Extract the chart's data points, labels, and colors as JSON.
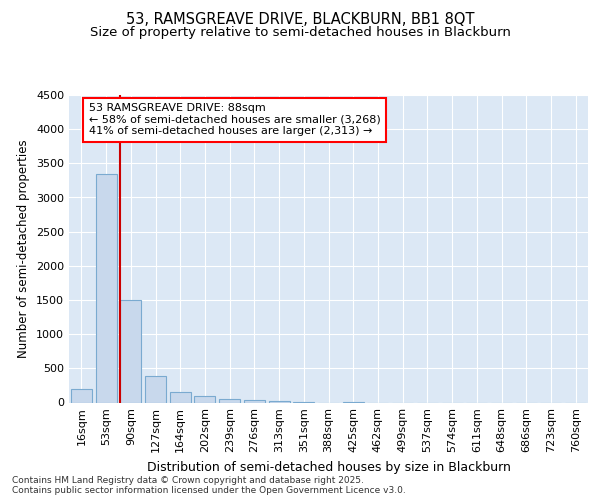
{
  "title1": "53, RAMSGREAVE DRIVE, BLACKBURN, BB1 8QT",
  "title2": "Size of property relative to semi-detached houses in Blackburn",
  "xlabel": "Distribution of semi-detached houses by size in Blackburn",
  "ylabel": "Number of semi-detached properties",
  "categories": [
    "16sqm",
    "53sqm",
    "90sqm",
    "127sqm",
    "164sqm",
    "202sqm",
    "239sqm",
    "276sqm",
    "313sqm",
    "351sqm",
    "388sqm",
    "425sqm",
    "462sqm",
    "499sqm",
    "537sqm",
    "574sqm",
    "611sqm",
    "648sqm",
    "686sqm",
    "723sqm",
    "760sqm"
  ],
  "values": [
    200,
    3350,
    1500,
    390,
    155,
    90,
    55,
    40,
    20,
    10,
    0,
    5,
    0,
    0,
    0,
    0,
    0,
    0,
    0,
    0,
    0
  ],
  "bar_color": "#c8d8ec",
  "bar_edge_color": "#7aaad0",
  "vline_color": "#cc0000",
  "vline_x_index": 2,
  "annotation_line1": "53 RAMSGREAVE DRIVE: 88sqm",
  "annotation_line2": "← 58% of semi-detached houses are smaller (3,268)",
  "annotation_line3": "41% of semi-detached houses are larger (2,313) →",
  "ylim": [
    0,
    4500
  ],
  "yticks": [
    0,
    500,
    1000,
    1500,
    2000,
    2500,
    3000,
    3500,
    4000,
    4500
  ],
  "fig_bg_color": "#ffffff",
  "plot_bg_color": "#dce8f5",
  "grid_color": "#ffffff",
  "title1_fontsize": 10.5,
  "title2_fontsize": 9.5,
  "xlabel_fontsize": 9,
  "ylabel_fontsize": 8.5,
  "tick_fontsize": 8,
  "annot_fontsize": 8,
  "footer_fontsize": 6.5,
  "footer": "Contains HM Land Registry data © Crown copyright and database right 2025.\nContains public sector information licensed under the Open Government Licence v3.0."
}
